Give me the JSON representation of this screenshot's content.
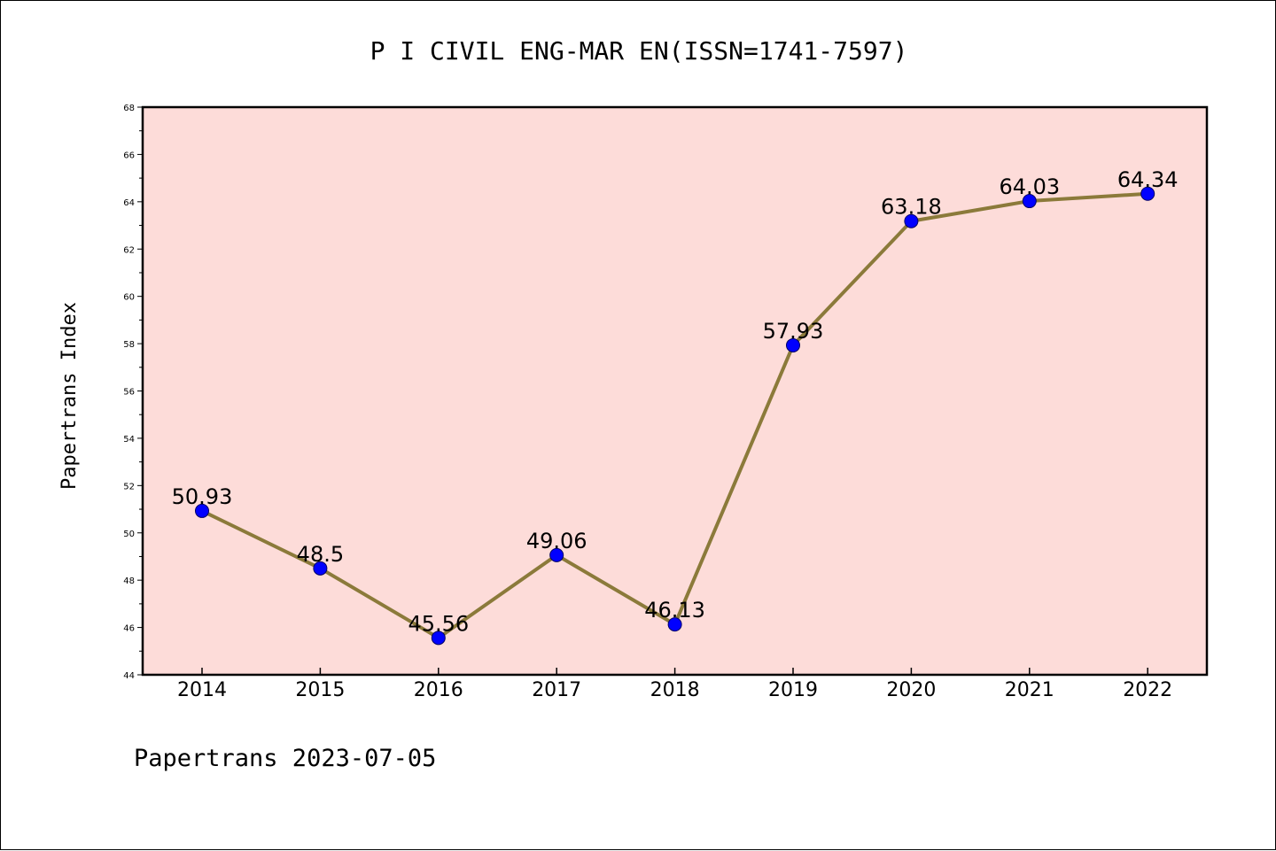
{
  "chart_data": {
    "type": "line",
    "title": "P I CIVIL ENG-MAR EN(ISSN=1741-7597)",
    "xlabel": "",
    "ylabel": "Papertrans Index",
    "categories": [
      "2014",
      "2015",
      "2016",
      "2017",
      "2018",
      "2019",
      "2020",
      "2021",
      "2022"
    ],
    "series": [
      {
        "values": [
          50.93,
          48.5,
          45.56,
          49.06,
          46.13,
          57.93,
          63.18,
          64.03,
          64.34
        ],
        "data_labels": [
          "50.93",
          "48.5",
          "45.56",
          "49.06",
          "46.13",
          "57.93",
          "63.18",
          "64.03",
          "64.34"
        ]
      }
    ],
    "ylim": [
      44,
      68
    ],
    "yticks": [
      "44",
      "46",
      "48",
      "50",
      "52",
      "54",
      "56",
      "58",
      "60",
      "62",
      "64",
      "66",
      "68"
    ],
    "grid": false,
    "legend": "none",
    "colors": {
      "plot_background": "#fddcd9",
      "line": "#8b7a3a",
      "marker": "#0000ff"
    }
  },
  "footer": "Papertrans 2023-07-05"
}
